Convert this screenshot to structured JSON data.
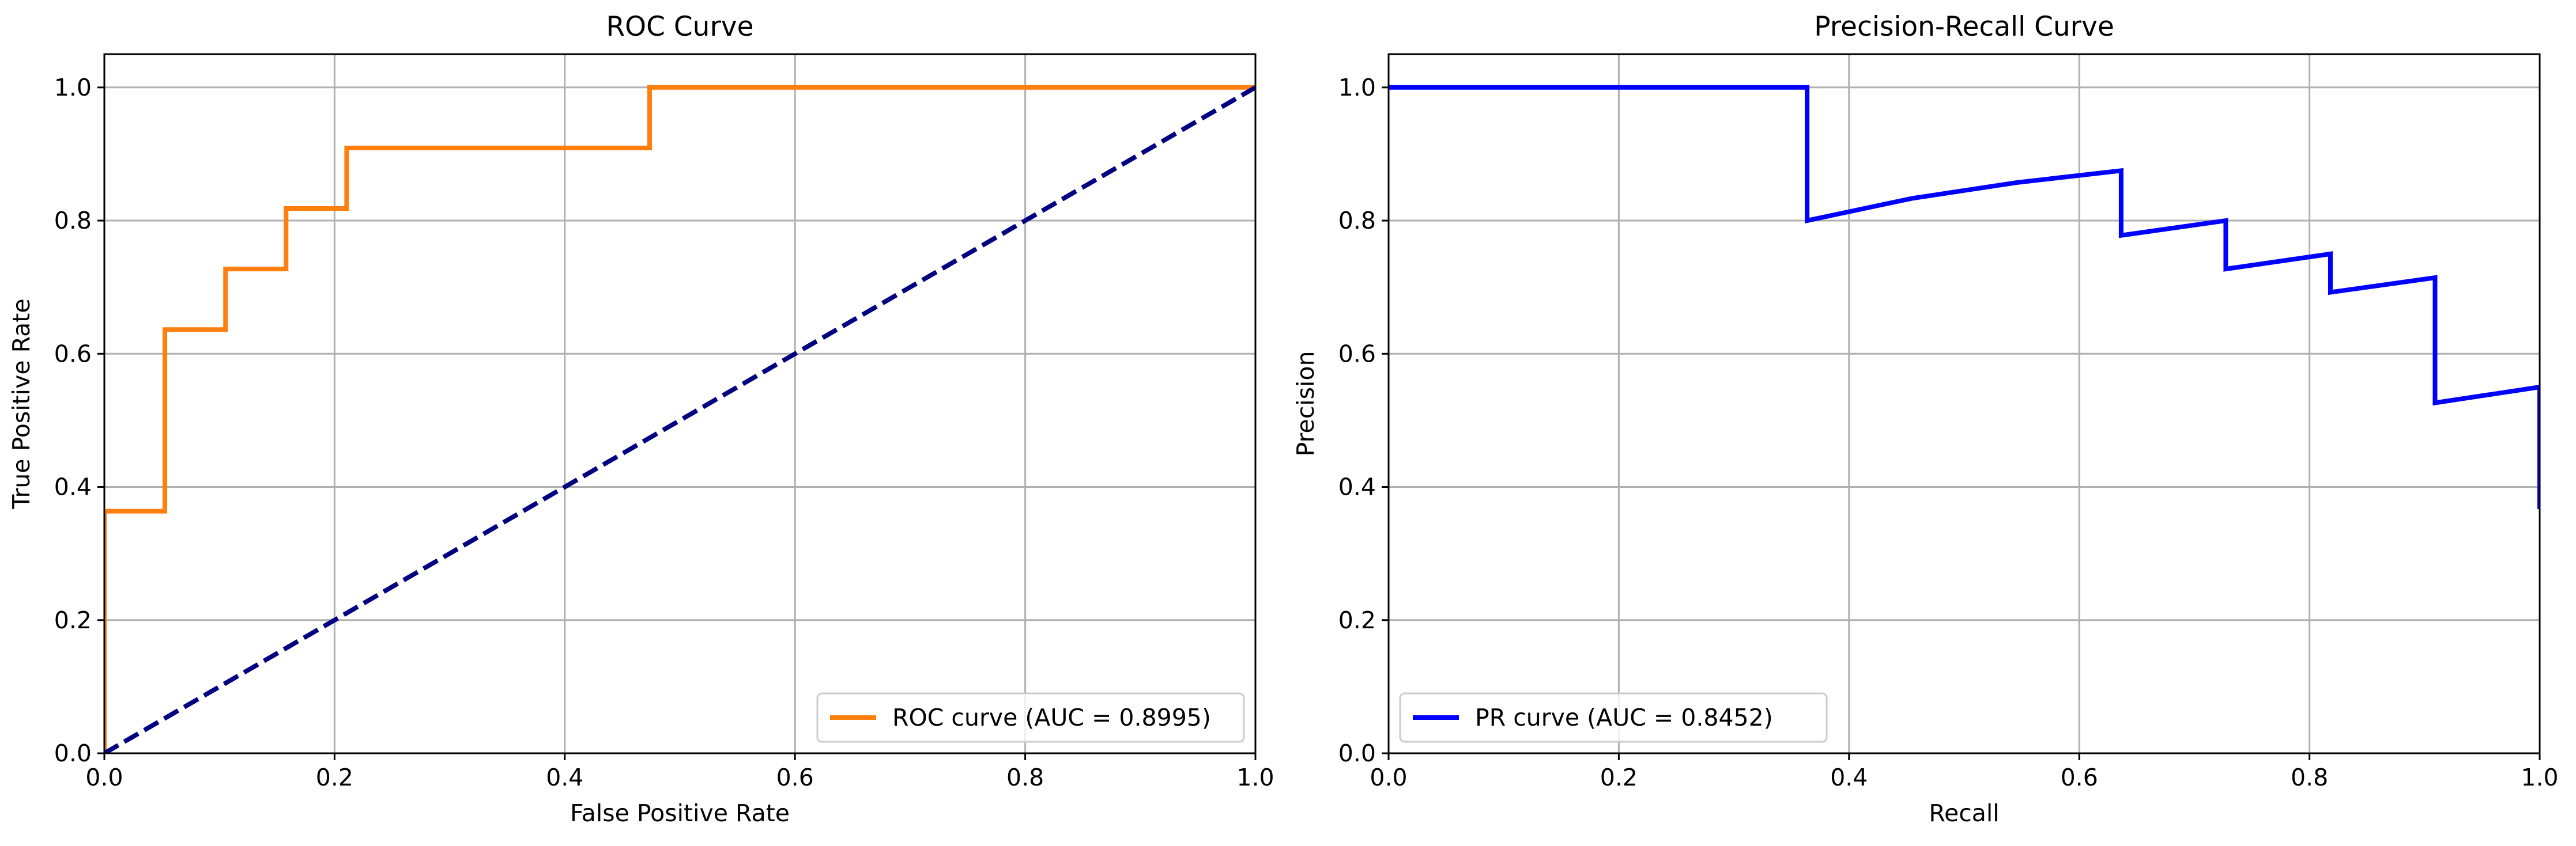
{
  "chart_data": [
    {
      "type": "line",
      "title": "ROC Curve",
      "xlabel": "False Positive Rate",
      "ylabel": "True Positive Rate",
      "xlim": [
        0.0,
        1.0
      ],
      "ylim": [
        0.0,
        1.05
      ],
      "xticks": [
        "0.0",
        "0.2",
        "0.4",
        "0.6",
        "0.8",
        "1.0"
      ],
      "yticks": [
        "0.0",
        "0.2",
        "0.4",
        "0.6",
        "0.8",
        "1.0"
      ],
      "grid": true,
      "legend_position": "lower right",
      "series": [
        {
          "name": "ROC curve (AUC = 0.8995)",
          "color": "#ff7f0e",
          "style": "solid",
          "x": [
            0.0,
            0.0,
            0.0526,
            0.0526,
            0.1053,
            0.1053,
            0.1579,
            0.1579,
            0.2105,
            0.2105,
            0.4737,
            0.4737,
            1.0
          ],
          "y": [
            0.0,
            0.3636,
            0.3636,
            0.6364,
            0.6364,
            0.7273,
            0.7273,
            0.8182,
            0.8182,
            0.9091,
            0.9091,
            1.0,
            1.0
          ]
        },
        {
          "name": "",
          "color": "#000080",
          "style": "dashed",
          "x": [
            0.0,
            1.0
          ],
          "y": [
            0.0,
            1.0
          ]
        }
      ]
    },
    {
      "type": "line",
      "title": "Precision-Recall Curve",
      "xlabel": "Recall",
      "ylabel": "Precision",
      "xlim": [
        0.0,
        1.0
      ],
      "ylim": [
        0.0,
        1.05
      ],
      "xticks": [
        "0.0",
        "0.2",
        "0.4",
        "0.6",
        "0.8",
        "1.0"
      ],
      "yticks": [
        "0.0",
        "0.2",
        "0.4",
        "0.6",
        "0.8",
        "1.0"
      ],
      "grid": true,
      "legend_position": "lower left",
      "series": [
        {
          "name": "PR curve (AUC = 0.8452)",
          "color": "#0000ff",
          "style": "solid",
          "x": [
            0.0,
            0.3636,
            0.3636,
            0.4545,
            0.5455,
            0.6364,
            0.6364,
            0.7273,
            0.7273,
            0.8182,
            0.8182,
            0.9091,
            0.9091,
            1.0,
            1.0
          ],
          "y": [
            1.0,
            1.0,
            0.8,
            0.8333,
            0.8571,
            0.875,
            0.7778,
            0.8,
            0.7273,
            0.75,
            0.6923,
            0.7143,
            0.5263,
            0.55,
            0.3667
          ]
        }
      ]
    }
  ]
}
